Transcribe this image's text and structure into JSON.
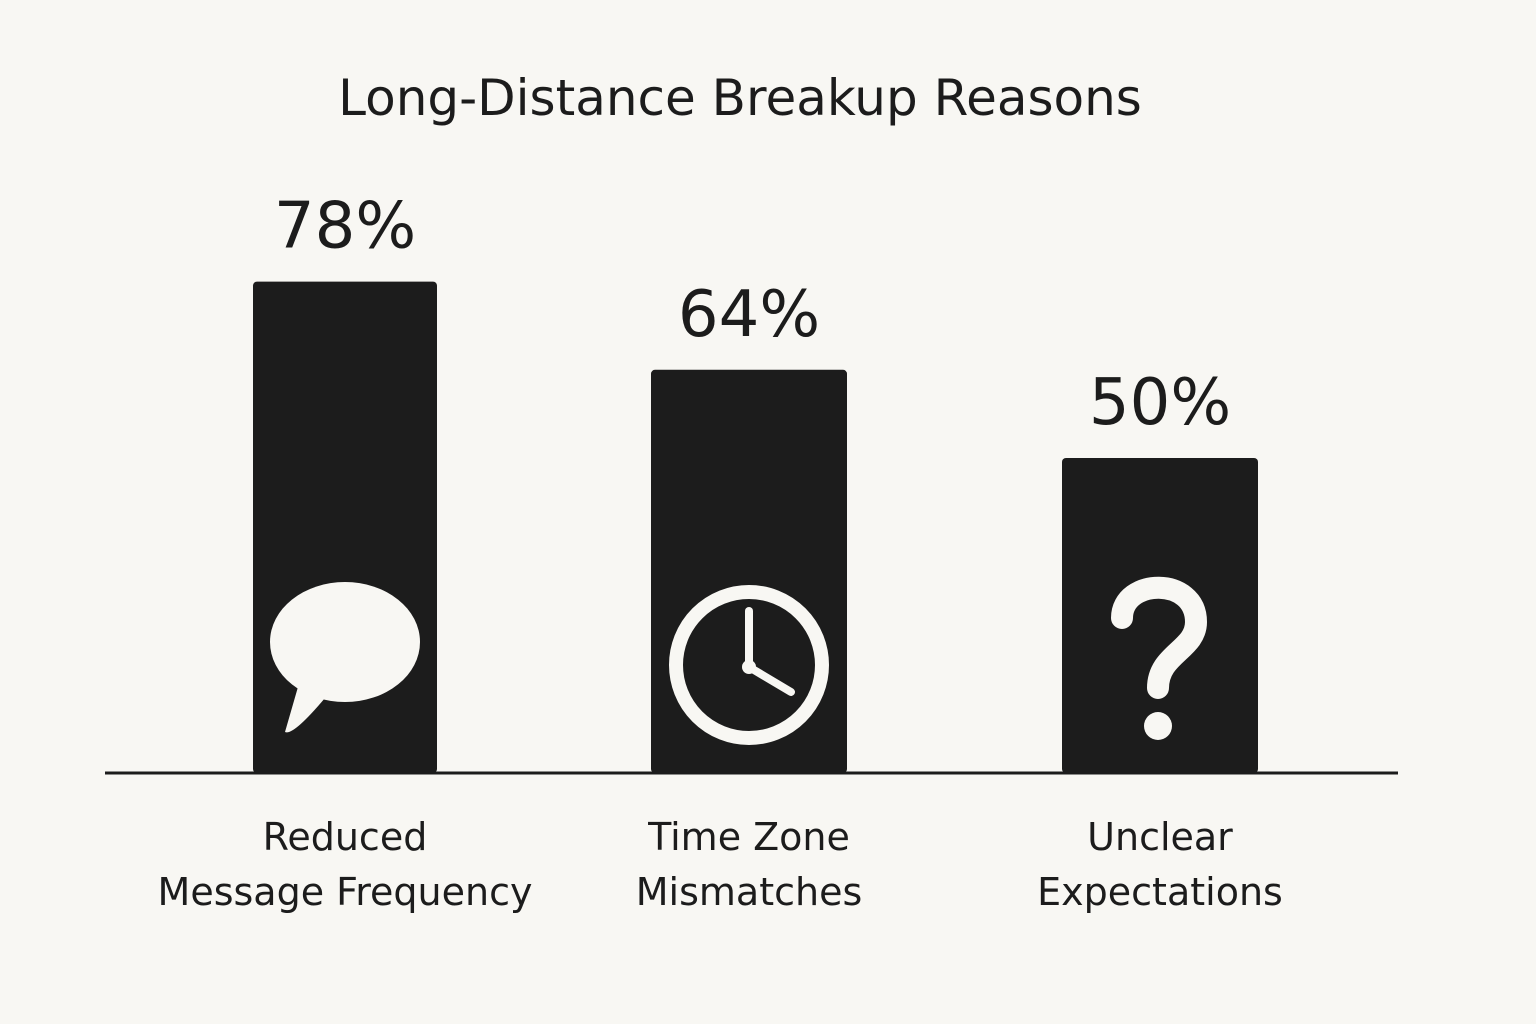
{
  "chart_data": {
    "type": "bar",
    "title": "Long-Distance Breakup Reasons",
    "categories": [
      [
        "Reduced",
        "Message Frequency"
      ],
      [
        "Time Zone",
        "Mismatches"
      ],
      [
        "Unclear",
        "Expectations"
      ]
    ],
    "values": [
      78,
      64,
      50
    ],
    "value_labels": [
      "78%",
      "64%",
      "50%"
    ],
    "icons": [
      "speech-bubble-icon",
      "clock-icon",
      "question-mark-icon"
    ],
    "unit": "%",
    "ylim": [
      0,
      100
    ],
    "xlabel": "",
    "ylabel": "",
    "grid": false
  },
  "colors": {
    "background": "#f8f7f3",
    "bar": "#1c1c1c",
    "text": "#1c1c1c",
    "icon": "#f8f7f3"
  }
}
